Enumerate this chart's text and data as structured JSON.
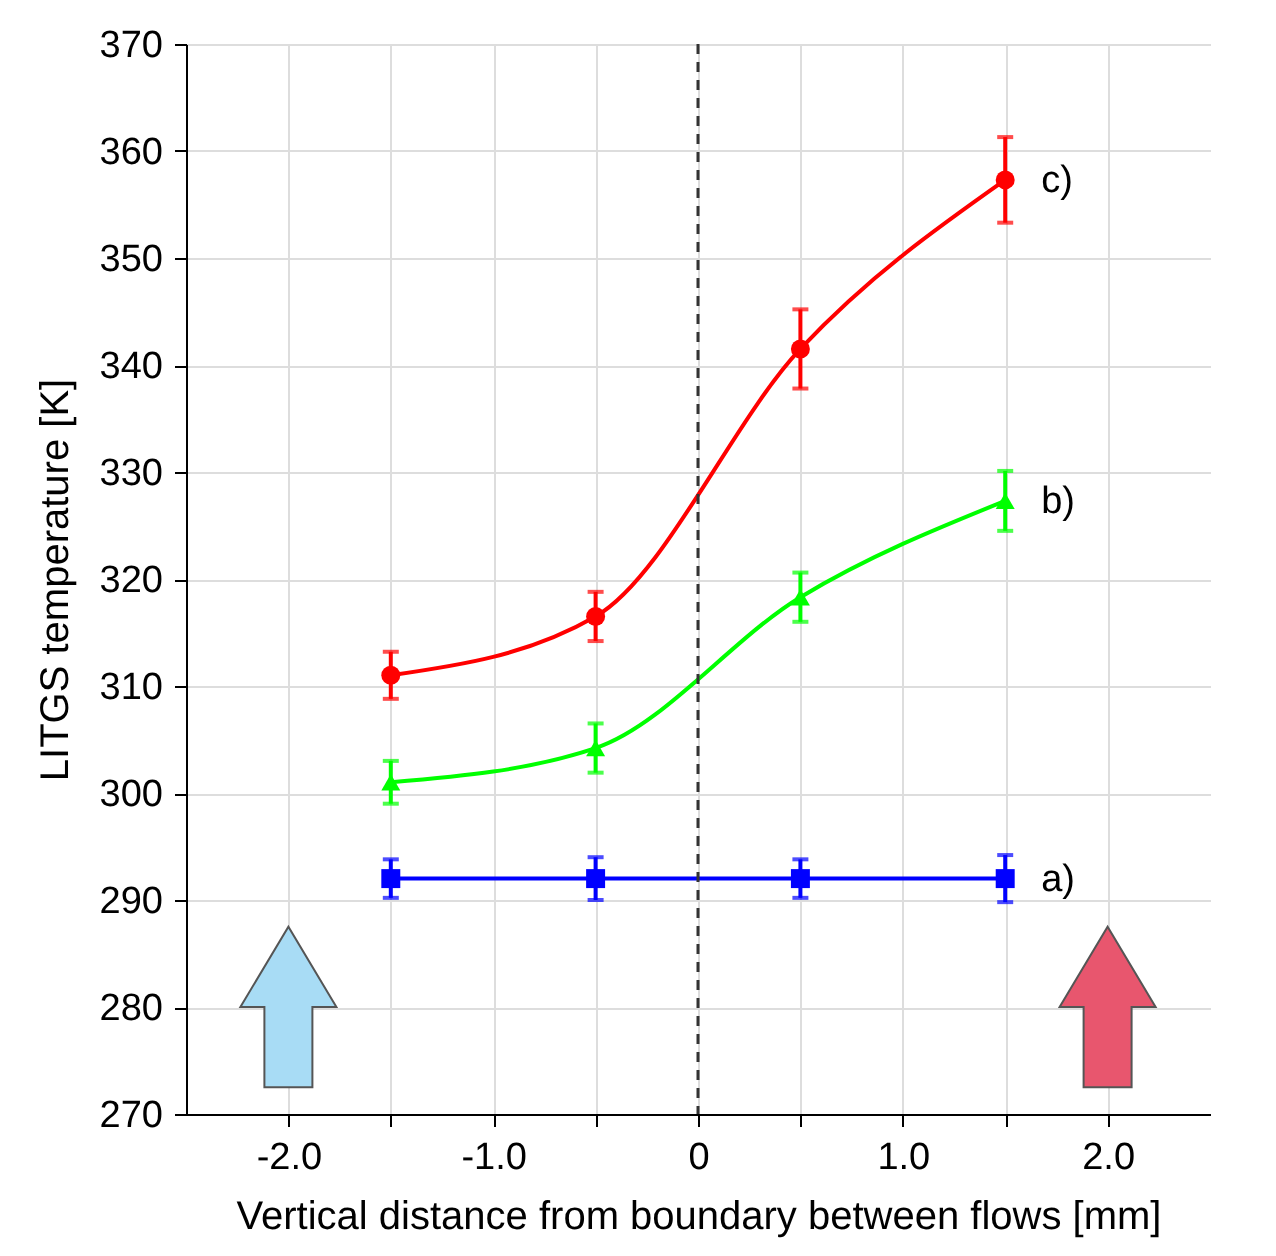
{
  "chart_data": {
    "type": "line",
    "xlabel": "Vertical distance from boundary between flows [mm]",
    "ylabel": "LITGS temperature [K]",
    "x": [
      -1.5,
      -0.5,
      0.5,
      1.5
    ],
    "xlim": [
      -2.5,
      2.5
    ],
    "xticks": [
      {
        "value": -2,
        "label": "-2.0"
      },
      {
        "value": -1.5,
        "label": null
      },
      {
        "value": -1,
        "label": "-1.0"
      },
      {
        "value": -0.5,
        "label": null
      },
      0,
      {
        "value": 0.5,
        "label": null
      },
      {
        "value": 1,
        "label": "1.0"
      },
      {
        "value": 1.5,
        "label": null
      },
      {
        "value": 2,
        "label": "2.0"
      }
    ],
    "ylim": [
      270,
      370
    ],
    "yticks": [
      270,
      280,
      290,
      300,
      310,
      320,
      330,
      340,
      350,
      360,
      370
    ],
    "grid": true,
    "legend": false,
    "ref_lines": [
      {
        "axis": "x",
        "value": 0,
        "color": "#333333",
        "line_style": "dashed"
      }
    ],
    "series": [
      {
        "name": "c)",
        "color": "#ff0000",
        "marker": "circle",
        "values": [
          311,
          316.5,
          341.5,
          357.3
        ],
        "errors": [
          2.2,
          2.3,
          3.7,
          4
        ]
      },
      {
        "name": "b)",
        "color": "#00ff00",
        "marker": "triangle",
        "values": [
          301,
          304.2,
          318.3,
          327.3
        ],
        "errors": [
          2,
          2.3,
          2.3,
          2.8
        ]
      },
      {
        "name": "a)",
        "color": "#0000ff",
        "marker": "square",
        "values": [
          292,
          292,
          292,
          292
        ],
        "errors": [
          1.8,
          2,
          1.8,
          2.2
        ]
      }
    ]
  }
}
